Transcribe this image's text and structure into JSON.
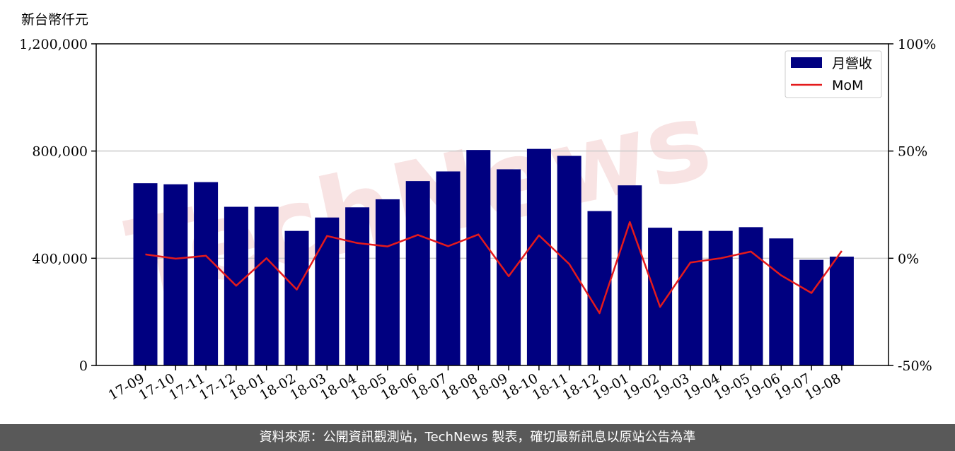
{
  "footer": {
    "text": "資料來源：公開資訊觀測站，TechNews 製表，確切最新訊息以原站公告為準"
  },
  "watermark": {
    "text": "TechNews"
  },
  "colors": {
    "bar": "#000080",
    "line": "#e41a1c",
    "grid": "#cccccc",
    "footer_bg": "#595959"
  },
  "chart_data": {
    "type": "bar",
    "categories": [
      "17-09",
      "17-10",
      "17-11",
      "17-12",
      "18-01",
      "18-02",
      "18-03",
      "18-04",
      "18-05",
      "18-06",
      "18-07",
      "18-08",
      "18-09",
      "18-10",
      "18-11",
      "18-12",
      "19-01",
      "19-02",
      "19-03",
      "19-04",
      "19-05",
      "19-06",
      "19-07",
      "19-08"
    ],
    "y_unit_label": "新台幣仟元",
    "ylim": [
      0,
      1200000
    ],
    "y_ticks": [
      0,
      400000,
      800000,
      1200000
    ],
    "y_tick_labels": [
      "0",
      "400,000",
      "800,000",
      "1,200,000"
    ],
    "y2lim": [
      -50,
      100
    ],
    "y2_ticks": [
      -50,
      0,
      50,
      100
    ],
    "y2_tick_labels": [
      "-50%",
      "0%",
      "50%",
      "100%"
    ],
    "grid": "horizontal",
    "legend_position": "top-right",
    "series": [
      {
        "name": "月營收",
        "type": "bar",
        "axis": "left",
        "values": [
          680000,
          676000,
          684000,
          592000,
          592000,
          502000,
          552000,
          590000,
          620000,
          688000,
          724000,
          804000,
          732000,
          808000,
          782000,
          576000,
          672000,
          514000,
          502000,
          502000,
          516000,
          474000,
          394000,
          406000
        ]
      },
      {
        "name": "MoM",
        "type": "line",
        "axis": "right",
        "values": [
          1.8,
          -0.2,
          1.2,
          -12.8,
          0.0,
          -14.6,
          10.4,
          7.1,
          5.5,
          10.9,
          5.6,
          11.1,
          -8.4,
          10.7,
          -2.7,
          -25.6,
          16.9,
          -22.7,
          -2.0,
          0.0,
          3.1,
          -8.0,
          -16.2,
          3.4
        ]
      }
    ]
  }
}
